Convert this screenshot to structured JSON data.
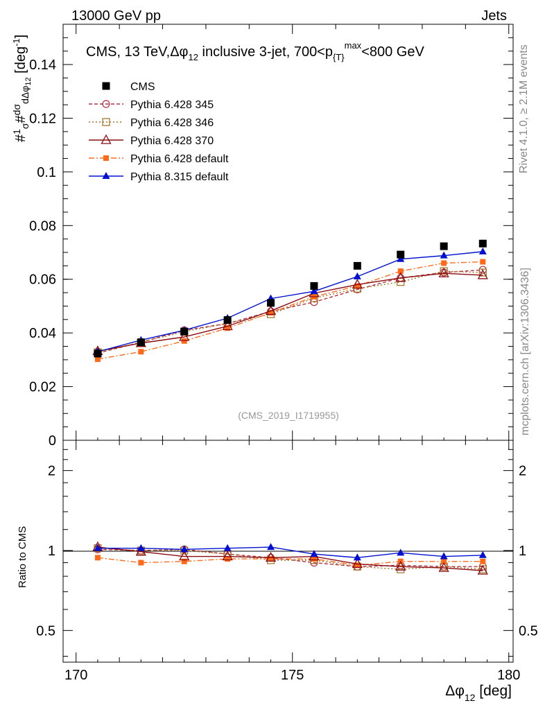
{
  "header": {
    "left": "13000 GeV pp",
    "right": "Jets"
  },
  "side": {
    "rivet": "Rivet 4.1.0, ≥ 2.1M events",
    "mcplots": "mcplots.cern.ch [arXiv:1306.3436]"
  },
  "chart_data": {
    "type": "line",
    "title": "CMS, 13 TeV, Δφ₁₂ inclusive 3-jet, 700<p_{T}^{max}<800 GeV",
    "title_parts": {
      "a": "CMS, 13 TeV,",
      "b": "Δφ",
      "c": "12",
      "d": " inclusive 3-jet, 700<p",
      "e": "{T}",
      "f": "max",
      "g": "<800 GeV"
    },
    "watermark": "(CMS_2019_I1719955)",
    "xlabel": {
      "main": "Δφ",
      "sub": "12",
      "unit": " [deg]"
    },
    "ylabel": {
      "text": "#¹⁄σ # dσ/dΔφ₁₂ [deg⁻¹]"
    },
    "ratio_ylabel": "Ratio to CMS",
    "xlim": [
      169.7,
      180.1
    ],
    "ylim": [
      0,
      0.155
    ],
    "ratio_ylim": [
      0.38,
      2.6
    ],
    "x_ticks": [
      "170",
      "175",
      "180"
    ],
    "y_ticks": [
      "0",
      "0.02",
      "0.04",
      "0.06",
      "0.08",
      "0.1",
      "0.12",
      "0.14"
    ],
    "ratio_ticks": [
      "0.5",
      "1",
      "2"
    ],
    "x": [
      170.5,
      171.5,
      172.5,
      173.5,
      174.5,
      175.5,
      176.5,
      177.5,
      178.5,
      179.4
    ],
    "series": [
      {
        "name": "CMS",
        "color": "#000000",
        "values": [
          0.0323,
          0.0365,
          0.0405,
          0.0448,
          0.0512,
          0.0575,
          0.065,
          0.0692,
          0.0723,
          0.0733
        ],
        "ratio": [
          1,
          1,
          1,
          1,
          1,
          1,
          1,
          1,
          1,
          1
        ]
      },
      {
        "name": "Pythia 6.428 345",
        "color": "#b03040",
        "values": [
          0.0325,
          0.0365,
          0.041,
          0.0435,
          0.048,
          0.0515,
          0.0562,
          0.0605,
          0.0625,
          0.0635
        ],
        "ratio": [
          1.01,
          1.0,
          1.01,
          0.97,
          0.94,
          0.9,
          0.87,
          0.88,
          0.87,
          0.87
        ]
      },
      {
        "name": "Pythia 6.428 346",
        "color": "#a07020",
        "values": [
          0.0328,
          0.0365,
          0.0405,
          0.0435,
          0.047,
          0.053,
          0.0565,
          0.059,
          0.063,
          0.0625
        ],
        "ratio": [
          1.02,
          1.0,
          1.0,
          0.97,
          0.92,
          0.92,
          0.87,
          0.85,
          0.87,
          0.85
        ]
      },
      {
        "name": "Pythia 6.428 370",
        "color": "#8b0a10",
        "values": [
          0.0332,
          0.0362,
          0.0385,
          0.0425,
          0.0482,
          0.0548,
          0.058,
          0.0605,
          0.0622,
          0.0615
        ],
        "ratio": [
          1.03,
          0.99,
          0.95,
          0.95,
          0.94,
          0.95,
          0.89,
          0.87,
          0.86,
          0.84
        ]
      },
      {
        "name": "Pythia 6.428 default",
        "color": "#ff6a1a",
        "values": [
          0.0302,
          0.033,
          0.037,
          0.0418,
          0.0475,
          0.0535,
          0.0575,
          0.063,
          0.066,
          0.0665
        ],
        "ratio": [
          0.94,
          0.9,
          0.91,
          0.93,
          0.93,
          0.93,
          0.88,
          0.91,
          0.91,
          0.91
        ]
      },
      {
        "name": "Pythia 8.315 default",
        "color": "#0010d0",
        "values": [
          0.033,
          0.0373,
          0.041,
          0.0455,
          0.0528,
          0.0555,
          0.061,
          0.0675,
          0.0688,
          0.0703
        ],
        "ratio": [
          1.02,
          1.02,
          1.01,
          1.02,
          1.03,
          0.97,
          0.94,
          0.98,
          0.95,
          0.96
        ]
      }
    ]
  }
}
